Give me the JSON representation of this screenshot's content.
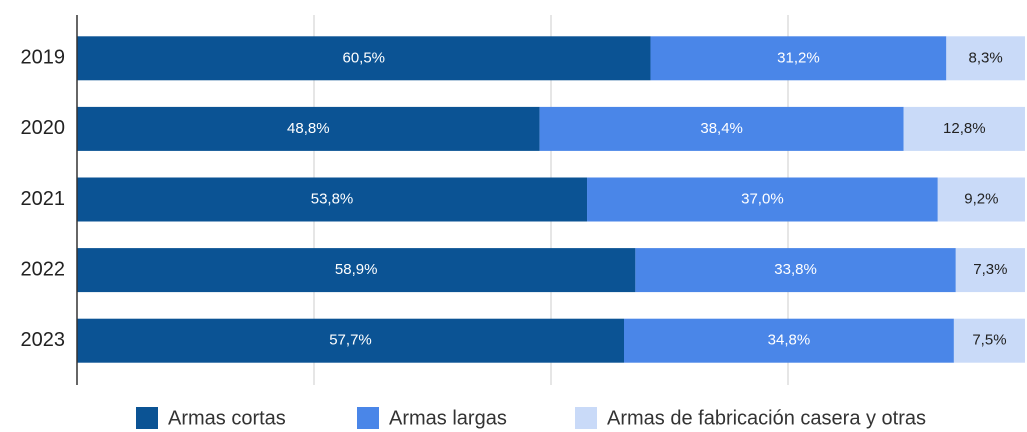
{
  "chart_data": {
    "type": "stacked_bar_horizontal",
    "categories": [
      "2019",
      "2020",
      "2021",
      "2022",
      "2023"
    ],
    "series": [
      {
        "name": "Armas cortas",
        "color": "#0b5394",
        "values": [
          60.5,
          48.8,
          53.8,
          58.9,
          57.7
        ],
        "value_labels": [
          "60,5%",
          "48,8%",
          "53,8%",
          "58,9%",
          "57,7%"
        ]
      },
      {
        "name": "Armas largas",
        "color": "#4a86e8",
        "values": [
          31.2,
          38.4,
          37.0,
          33.8,
          34.8
        ],
        "value_labels": [
          "31,2%",
          "38,4%",
          "37,0%",
          "33,8%",
          "34,8%"
        ]
      },
      {
        "name": "Armas de fabricación casera y otras",
        "color": "#c9daf8",
        "values": [
          8.3,
          12.8,
          9.2,
          7.3,
          7.5
        ],
        "value_labels": [
          "8,3%",
          "12,8%",
          "9,2%",
          "7,3%",
          "7,5%"
        ]
      }
    ],
    "xlim": [
      0,
      100
    ],
    "xticks": [
      25,
      50,
      75
    ],
    "grid": true,
    "legend": "bottom"
  }
}
